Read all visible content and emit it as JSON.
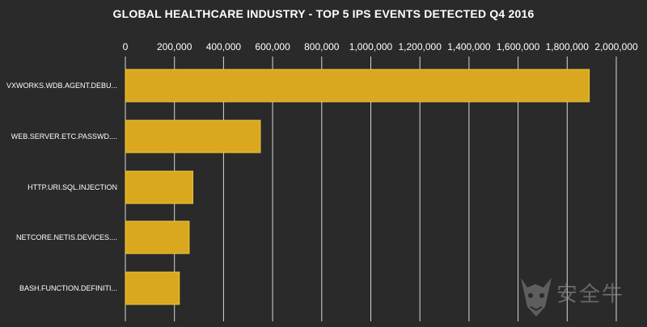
{
  "chart_data": {
    "type": "bar",
    "orientation": "horizontal",
    "title": "GLOBAL HEALTHCARE INDUSTRY - TOP 5 IPS EVENTS DETECTED Q4 2016",
    "categories": [
      "VXWORKS.WDB.AGENT.DEBU...",
      "WEB.SERVER.ETC.PASSWD....",
      "HTTP.URI.SQL.INJECTION",
      "NETCORE.NETIS.DEVICES....",
      "BASH.FUNCTION.DEFINITI..."
    ],
    "values": [
      1890000,
      550000,
      275000,
      260000,
      220000
    ],
    "xlim": [
      0,
      2000000
    ],
    "xticks": [
      0,
      200000,
      400000,
      600000,
      800000,
      1000000,
      1200000,
      1400000,
      1600000,
      1800000,
      2000000
    ],
    "xtick_labels": [
      "0",
      "200,000",
      "400,000",
      "600,000",
      "800,000",
      "1,000,000",
      "1,200,000",
      "1,400,000",
      "1,600,000",
      "1,800,000",
      "2,000,000"
    ],
    "axis_position": "top",
    "grid": true,
    "legend": "none",
    "colors": {
      "bar_fill": "#d9a81e",
      "bar_stroke": "#f2c83a",
      "background": "#2a2a2a",
      "gridline": "#d8d8d8",
      "text": "#ffffff"
    }
  },
  "watermark": {
    "text": "安全牛",
    "icon": "bull-head-icon"
  }
}
